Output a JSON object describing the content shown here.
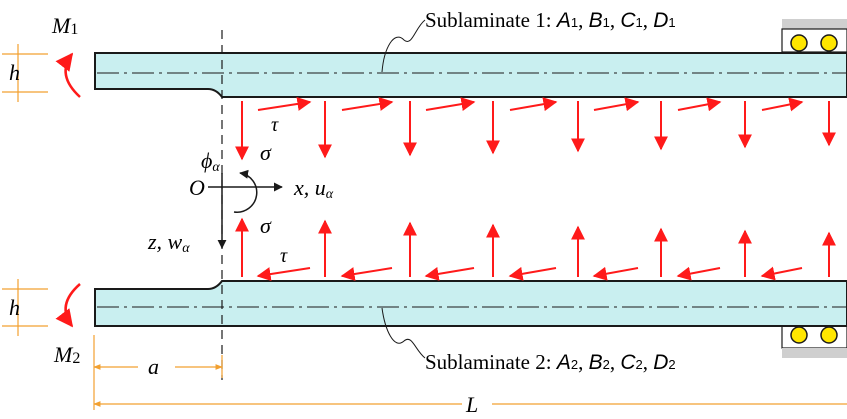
{
  "colors": {
    "beam_fill": "#c9eff0",
    "beam_stroke": "#1a1a1a",
    "arrow": "#ff1a1a",
    "dimension": "#f2a030",
    "roller_fill": "#ffe600",
    "support": "#cfcfcf"
  },
  "labels": {
    "sublaminate_1_prefix": "Sublaminate 1: ",
    "sublaminate_2_prefix": "Sublaminate 2: ",
    "moment_1": "M",
    "moment_1_sub": "1",
    "moment_2": "M",
    "moment_2_sub": "2",
    "thickness_top": "h",
    "thickness_bottom": "h",
    "crack_length": "a",
    "total_length": "L",
    "origin": "O",
    "rotation": "ϕ",
    "rotation_sub": "α",
    "x_axis": "x, u",
    "x_axis_sub": "α",
    "z_axis": "z, w",
    "z_axis_sub": "α",
    "normal_stress_top": "σ",
    "normal_stress_bottom": "σ",
    "shear_stress_top": "τ",
    "shear_stress_bottom": "τ"
  },
  "sublaminate_1_props": [
    {
      "letter": "A",
      "sub": "1"
    },
    {
      "letter": "B",
      "sub": "1"
    },
    {
      "letter": "C",
      "sub": "1"
    },
    {
      "letter": "D",
      "sub": "1"
    }
  ],
  "sublaminate_2_props": [
    {
      "letter": "A",
      "sub": "2"
    },
    {
      "letter": "B",
      "sub": "2"
    },
    {
      "letter": "C",
      "sub": "2"
    },
    {
      "letter": "D",
      "sub": "2"
    }
  ]
}
